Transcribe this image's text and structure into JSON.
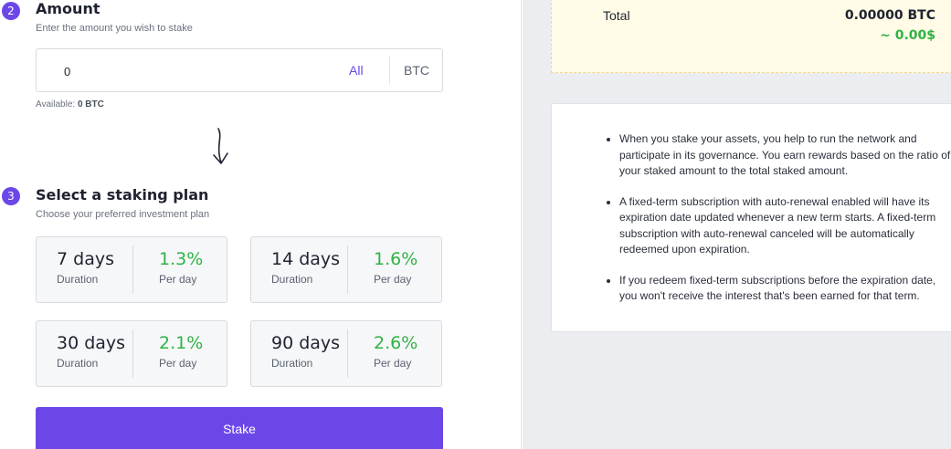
{
  "amount_step": {
    "number": "2",
    "title": "Amount",
    "subtitle": "Enter the amount you wish to stake",
    "input_value": "0",
    "all_label": "All",
    "currency": "BTC",
    "available_label": "Available:",
    "available_value": "0 BTC"
  },
  "plan_step": {
    "number": "3",
    "title": "Select a staking plan",
    "subtitle": "Choose your preferred investment plan",
    "plans": [
      {
        "days": "7 days",
        "duration_label": "Duration",
        "rate": "1.3%",
        "rate_label": "Per day"
      },
      {
        "days": "14 days",
        "duration_label": "Duration",
        "rate": "1.6%",
        "rate_label": "Per day"
      },
      {
        "days": "30 days",
        "duration_label": "Duration",
        "rate": "2.1%",
        "rate_label": "Per day"
      },
      {
        "days": "90 days",
        "duration_label": "Duration",
        "rate": "2.6%",
        "rate_label": "Per day"
      }
    ]
  },
  "stake_button": {
    "label": "Stake"
  },
  "summary": {
    "total_label": "Total",
    "total_value": "0.00000 BTC",
    "total_usd": "~ 0.00$"
  },
  "info": {
    "points": [
      "When you stake your assets, you help to run the network and participate in its governance. You earn rewards based on the ratio of your staked amount to the total staked amount.",
      "A fixed-term subscription with auto-renewal enabled will have its expiration date updated whenever a new term starts. A fixed-term subscription with auto-renewal canceled will be automatically redeemed upon expiration.",
      "If you redeem fixed-term subscriptions before the expiration date, you won't receive the interest that's been earned for that term."
    ]
  },
  "colors": {
    "accent": "#6c47e8",
    "positive": "#2fb344",
    "summary_bg": "#fffbe6"
  },
  "icons": {
    "arrow": "curved-down-arrow-icon"
  }
}
